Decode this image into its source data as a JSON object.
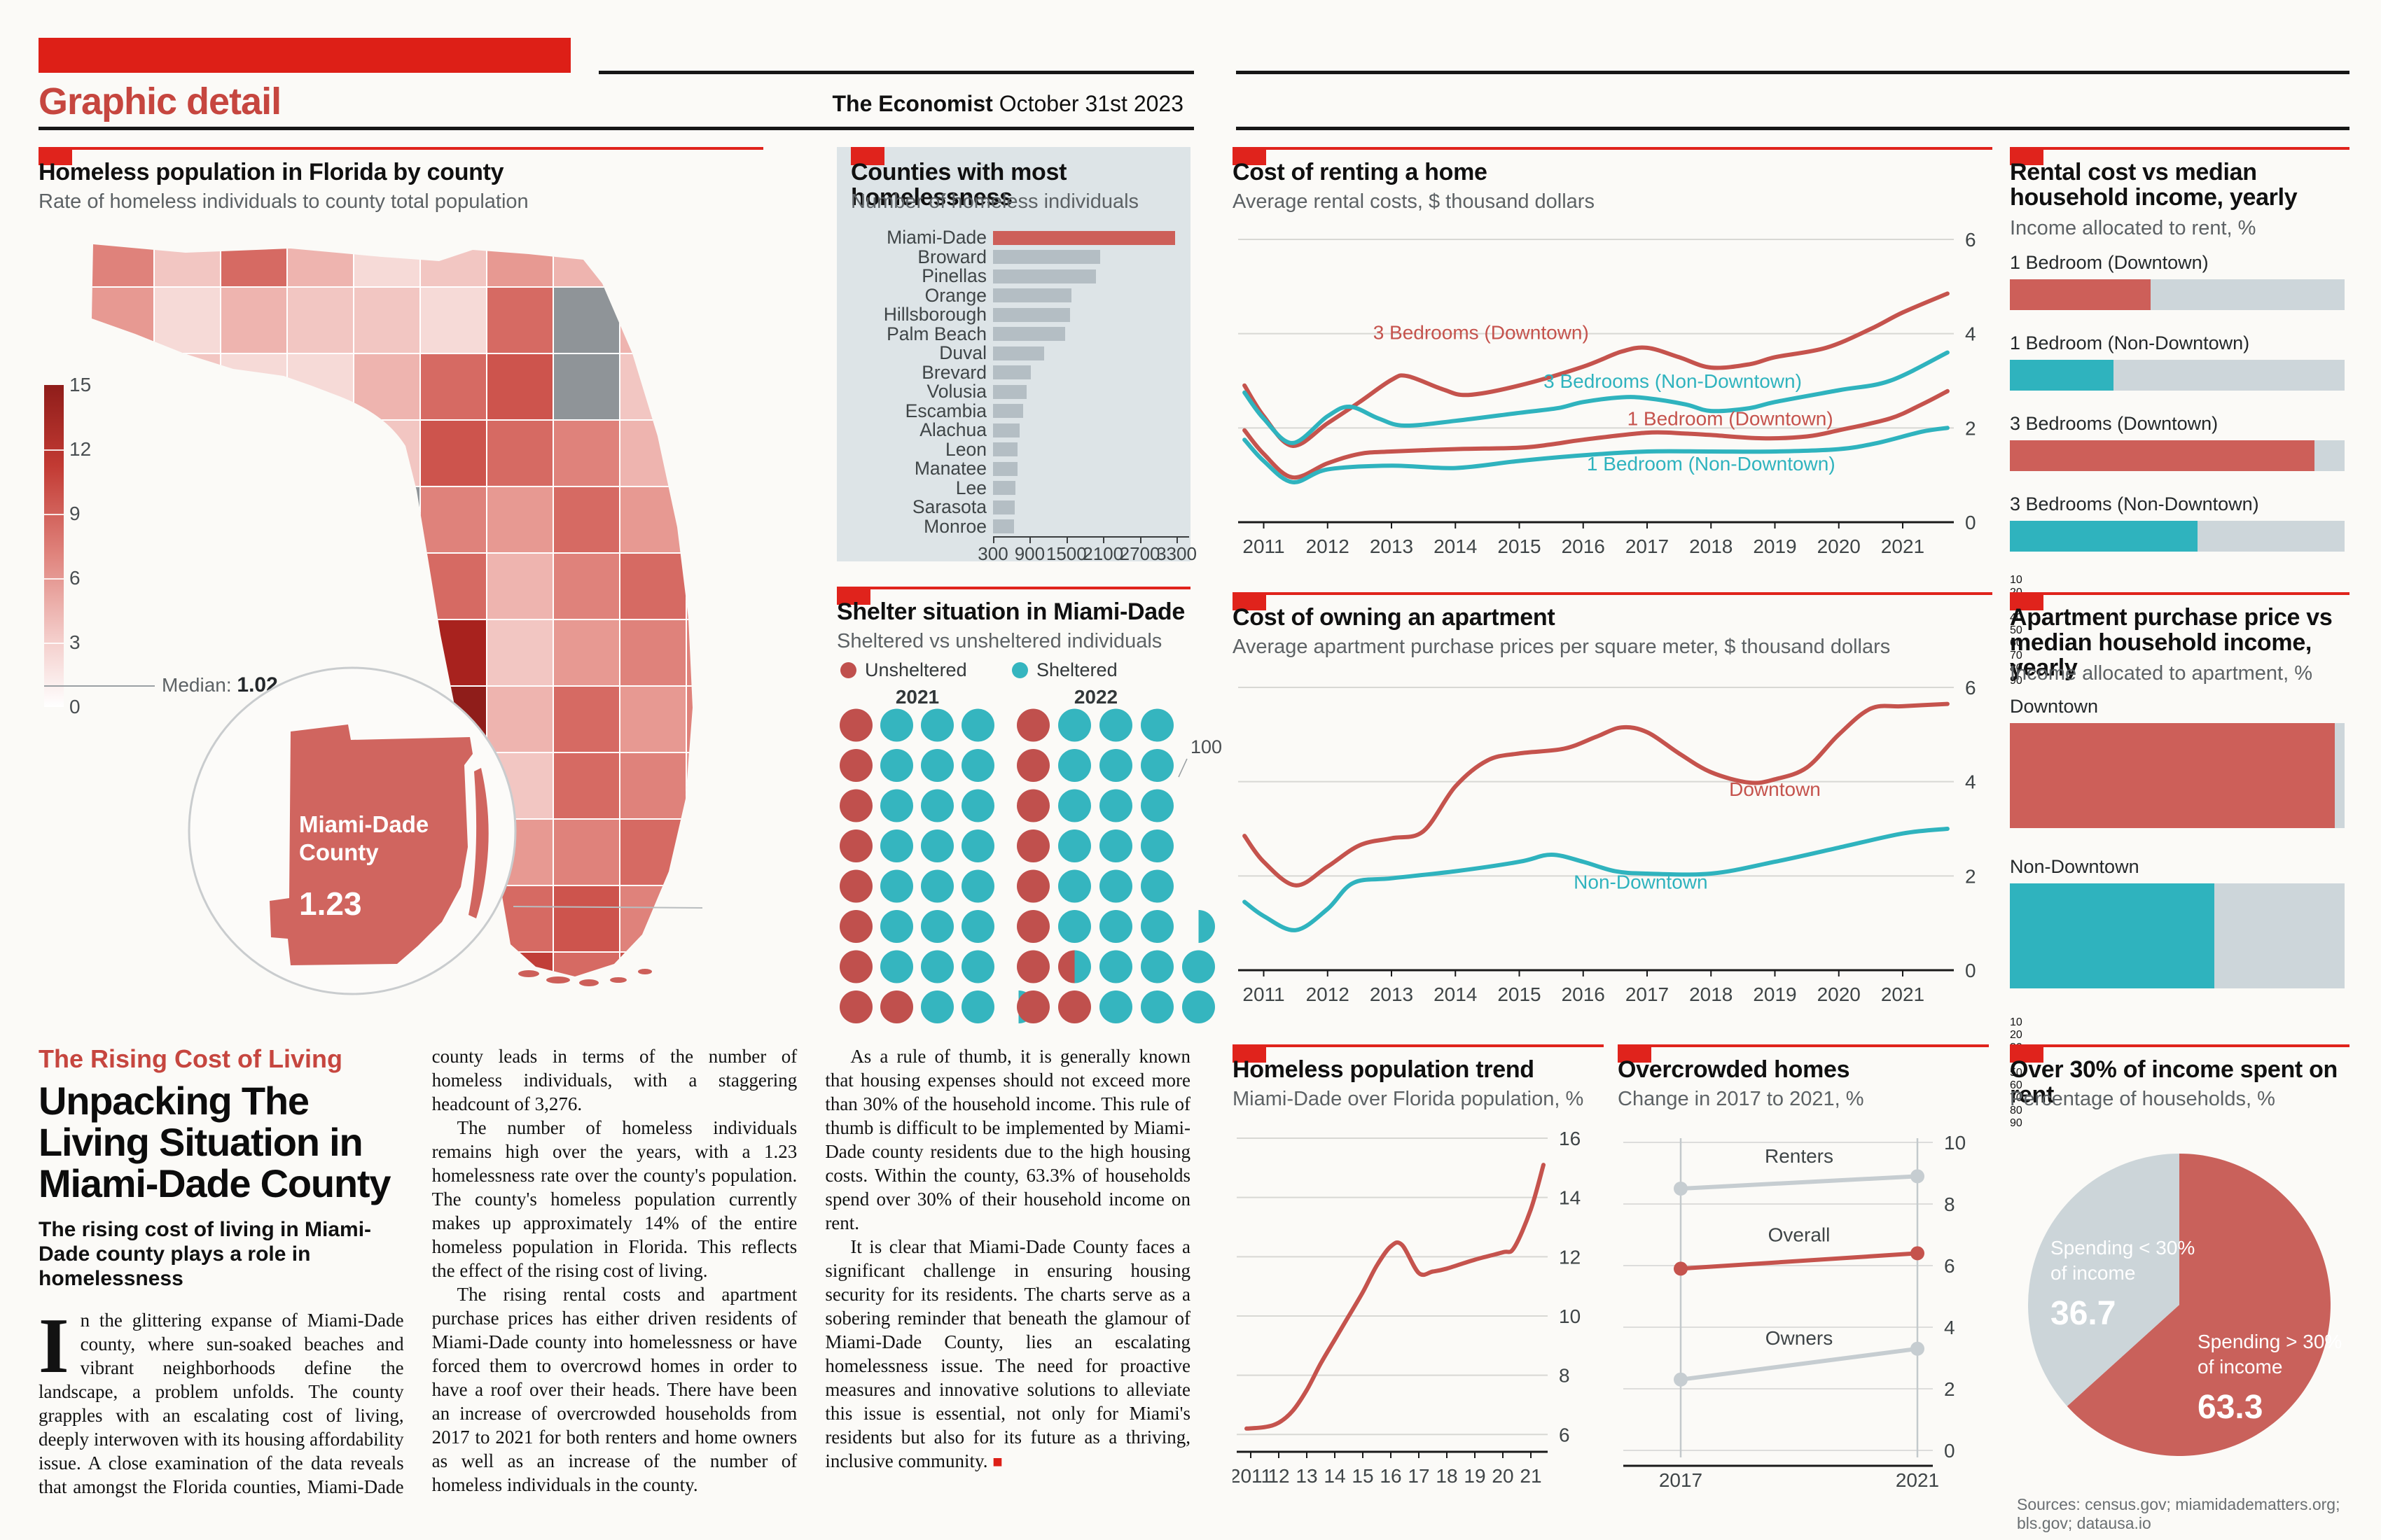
{
  "header": {
    "section": "Graphic detail",
    "publication": "The Economist",
    "date": "October 31st 2023"
  },
  "sources": "Sources: census.gov; miamidadematters.org; bls.gov; datausa.io",
  "article": {
    "kicker": "The Rising Cost of Living",
    "headline": "Unpacking The Living Situation in Miami-Dade County",
    "deck": "The rising cost of living in Miami-Dade county plays a role in homelessness",
    "paragraphs": [
      "In the glittering expanse of Miami-Dade county, where sun-soaked beaches and vibrant neighborhoods define the landscape, a problem unfolds. The county grapples with an escalating cost of living, deeply interwoven with its housing affordability issue. A close examination of the data reveals that amongst the Florida counties, Miami-Dade county leads in terms of the number of homeless individuals, with a staggering headcount of 3,276.",
      "The number of homeless individuals remains high over the years, with a 1.23 homelessness rate over the county's population. The county's homeless population currently makes up approximately 14% of the entire homeless population in Florida. This reflects the effect of the rising cost of living.",
      "The rising rental costs and apartment purchase prices has either driven residents of Miami-Dade county into homelessness or have forced them to overcrowd homes in order to have a roof over their heads. There have been an increase of overcrowded households from 2017 to 2021 for both renters and home owners as well as an increase of the number of homeless individuals in the county.",
      "As a rule of thumb, it is generally known that housing expenses should not exceed more than 30% of the household income. This rule of thumb is difficult to be implemented by Miami-Dade county residents due to the high housing costs. Within the county, 63.3% of households spend over 30% of their household income on rent.",
      "It is clear that Miami-Dade County faces a significant challenge in ensuring housing security for its residents. The charts serve as a sobering reminder that beneath the glamour of Miami-Dade County, lies an escalating homelessness issue. The need for proactive measures and innovative solutions to alleviate this issue is essential, not only for Miami's residents but also for its future as a thriving, inclusive community."
    ],
    "end_mark": "■"
  },
  "chart_data": [
    {
      "type": "bar",
      "orientation": "horizontal",
      "title": "Counties with most homelessness",
      "subtitle": "Number of homeless individuals",
      "categories": [
        "Miami-Dade",
        "Broward",
        "Pinellas",
        "Orange",
        "Hillsborough",
        "Palm Beach",
        "Duval",
        "Brevard",
        "Volusia",
        "Escambia",
        "Alachua",
        "Leon",
        "Manatee",
        "Lee",
        "Sarasota",
        "Monroe"
      ],
      "values": [
        3276,
        2046,
        1985,
        1580,
        1555,
        1480,
        1130,
        920,
        850,
        790,
        730,
        705,
        700,
        670,
        660,
        640
      ],
      "highlight_index": 0,
      "highlight_color": "#cd5f59",
      "bar_color": "#b4bec4",
      "xlim": [
        300,
        3300
      ],
      "x_ticks": [
        300,
        900,
        1500,
        2100,
        2700,
        3300
      ]
    },
    {
      "type": "line",
      "title": "Cost of renting a home",
      "subtitle": "Average rental costs, $ thousand dollars",
      "ylim": [
        0,
        6
      ],
      "y_ticks": [
        0,
        2,
        4,
        6
      ],
      "grid_vals": [
        2,
        4,
        6
      ],
      "x_ticks": [
        "2011",
        "2012",
        "2013",
        "2014",
        "2015",
        "2016",
        "2017",
        "2018",
        "2019",
        "2020",
        "2021"
      ],
      "series": [
        {
          "name": "3 Bedrooms (Downtown)",
          "color": "#c5534d",
          "label": [
            2014.4,
            3.88
          ],
          "x": [
            2010.7,
            2011,
            2011.45,
            2012,
            2012.5,
            2013,
            2013.25,
            2013.8,
            2014.2,
            2015,
            2016,
            2016.6,
            2017,
            2017.5,
            2018,
            2018.6,
            2019,
            2019.8,
            2020.5,
            2021,
            2021.7
          ],
          "y": [
            2.9,
            2.25,
            1.62,
            2.1,
            2.55,
            3.02,
            3.1,
            2.82,
            2.7,
            2.9,
            3.3,
            3.62,
            3.7,
            3.5,
            3.28,
            3.35,
            3.5,
            3.7,
            4.1,
            4.45,
            4.85
          ]
        },
        {
          "name": "3 Bedrooms (Non-Downtown)",
          "color": "#2fb3be",
          "label": [
            2017.4,
            2.85
          ],
          "x": [
            2010.7,
            2011,
            2011.45,
            2012,
            2012.35,
            2012.8,
            2013.2,
            2014,
            2015,
            2015.6,
            2016,
            2016.6,
            2017,
            2017.6,
            2018,
            2018.6,
            2019,
            2020,
            2020.8,
            2021.7
          ],
          "y": [
            2.75,
            2.2,
            1.68,
            2.25,
            2.45,
            2.2,
            2.05,
            2.15,
            2.32,
            2.42,
            2.55,
            2.65,
            2.63,
            2.5,
            2.36,
            2.42,
            2.55,
            2.8,
            3.0,
            3.6
          ]
        },
        {
          "name": "1 Bedroom (Downtown)",
          "color": "#c5534d",
          "label": [
            2018.3,
            2.06
          ],
          "x": [
            2010.7,
            2011,
            2011.45,
            2012,
            2012.5,
            2013,
            2014,
            2015,
            2015.5,
            2016,
            2017,
            2017.6,
            2018,
            2018.8,
            2019.5,
            2020,
            2020.8,
            2021.3,
            2021.7
          ],
          "y": [
            1.95,
            1.45,
            0.95,
            1.25,
            1.45,
            1.5,
            1.55,
            1.58,
            1.65,
            1.75,
            1.9,
            1.88,
            1.85,
            1.78,
            1.82,
            1.95,
            2.2,
            2.5,
            2.78
          ]
        },
        {
          "name": "1 Bedroom (Non-Downtown)",
          "color": "#2fb3be",
          "label": [
            2018.0,
            1.1
          ],
          "x": [
            2010.7,
            2011,
            2011.45,
            2012,
            2013,
            2014,
            2015,
            2016,
            2017,
            2018,
            2019,
            2020,
            2020.6,
            2021.3,
            2021.7
          ],
          "y": [
            1.75,
            1.3,
            0.85,
            1.12,
            1.2,
            1.15,
            1.3,
            1.42,
            1.5,
            1.5,
            1.5,
            1.55,
            1.68,
            1.92,
            2.0
          ]
        }
      ]
    },
    {
      "type": "bar",
      "orientation": "horizontal",
      "title": "Rental cost vs median household income, yearly",
      "subtitle": "Income allocated to rent, %",
      "categories": [
        "1 Bedroom (Downtown)",
        "1 Bedroom (Non-Downtown)",
        "3 Bedrooms (Downtown)",
        "3 Bedrooms (Non-Downtown)"
      ],
      "values": [
        42,
        31,
        91,
        56
      ],
      "colors": [
        "#cd5f59",
        "#2fb3be",
        "#cd5f59",
        "#2fb3be"
      ],
      "xlim": [
        0,
        100
      ],
      "x_ticks": [
        10,
        20,
        30,
        40,
        50,
        60,
        70,
        80,
        90
      ],
      "track_color": "#cdd6da"
    },
    {
      "type": "line",
      "title": "Cost of owning an apartment",
      "subtitle": "Average apartment purchase prices per square meter, $ thousand dollars",
      "ylim": [
        0,
        6
      ],
      "y_ticks": [
        0,
        2,
        4,
        6
      ],
      "grid_vals": [
        2,
        4,
        6
      ],
      "x_ticks": [
        "2011",
        "2012",
        "2013",
        "2014",
        "2015",
        "2016",
        "2017",
        "2018",
        "2019",
        "2020",
        "2021"
      ],
      "series": [
        {
          "name": "Downtown",
          "color": "#c5534d",
          "label": [
            2019.0,
            3.7
          ],
          "x": [
            2010.7,
            2011,
            2011.5,
            2012,
            2012.5,
            2013,
            2013.5,
            2014,
            2014.5,
            2015,
            2015.7,
            2016.2,
            2016.6,
            2017,
            2017.5,
            2018,
            2018.6,
            2019,
            2019.5,
            2020,
            2020.5,
            2021,
            2021.7
          ],
          "y": [
            2.85,
            2.3,
            1.8,
            2.2,
            2.65,
            2.8,
            2.95,
            3.9,
            4.45,
            4.6,
            4.7,
            4.95,
            5.15,
            5.05,
            4.6,
            4.2,
            3.98,
            4.05,
            4.3,
            5.0,
            5.55,
            5.6,
            5.65
          ]
        },
        {
          "name": "Non-Downtown",
          "color": "#2fb3be",
          "label": [
            2016.9,
            1.73
          ],
          "x": [
            2010.7,
            2011,
            2011.5,
            2012,
            2012.4,
            2013,
            2014,
            2015,
            2015.5,
            2016,
            2016.5,
            2017,
            2018,
            2019,
            2020,
            2021,
            2021.7
          ],
          "y": [
            1.45,
            1.15,
            0.85,
            1.3,
            1.85,
            1.95,
            2.1,
            2.3,
            2.45,
            2.3,
            2.1,
            2.05,
            2.05,
            2.3,
            2.6,
            2.9,
            3.0
          ]
        }
      ]
    },
    {
      "type": "bar",
      "orientation": "horizontal",
      "title": "Apartment purchase price vs median household income, yearly",
      "subtitle": "Income allocated to apartment, %",
      "categories": [
        "Downtown",
        "Non-Downtown"
      ],
      "values": [
        97,
        61
      ],
      "colors": [
        "#cd5f59",
        "#2fb3be"
      ],
      "xlim": [
        0,
        100
      ],
      "x_ticks": [
        10,
        20,
        30,
        40,
        50,
        60,
        70,
        80,
        90
      ],
      "track_color": "#cdd6da"
    },
    {
      "type": "line",
      "title": "Homeless population trend",
      "subtitle": "Miami-Dade over Florida population, %",
      "ylim": [
        5.7,
        16
      ],
      "y_ticks": [
        16,
        14,
        12,
        10,
        8,
        6
      ],
      "grid_vals": [
        6,
        8,
        10,
        12,
        14,
        16
      ],
      "x_ticks": [
        "2011",
        "12",
        "13",
        "14",
        "15",
        "16",
        "17",
        "18",
        "19",
        "20",
        "21"
      ],
      "series": [
        {
          "name": "Miami-Dade over Florida",
          "color": "#c5534d",
          "x": [
            2010.85,
            2011.5,
            2012,
            2012.5,
            2013,
            2013.5,
            2014,
            2014.5,
            2015,
            2015.5,
            2016,
            2016.4,
            2017,
            2017.5,
            2018,
            2019,
            2020,
            2020.4,
            2021,
            2021.45
          ],
          "y": [
            6.2,
            6.25,
            6.4,
            6.8,
            7.5,
            8.4,
            9.2,
            10.0,
            10.8,
            11.7,
            12.35,
            12.4,
            11.45,
            11.5,
            11.6,
            11.9,
            12.15,
            12.3,
            13.6,
            15.1
          ]
        }
      ]
    },
    {
      "type": "slope",
      "title": "Overcrowded homes",
      "subtitle": "Change in 2017 to 2021, %",
      "categories": [
        "2017",
        "2021"
      ],
      "ylim": [
        0,
        10
      ],
      "y_ticks": [
        10,
        8,
        6,
        4,
        2,
        0
      ],
      "series": [
        {
          "name": "Renters",
          "color": "#c6cdd1",
          "values": [
            8.5,
            8.9
          ]
        },
        {
          "name": "Overall",
          "color": "#c5534d",
          "values": [
            5.9,
            6.4
          ]
        },
        {
          "name": "Owners",
          "color": "#c6cdd1",
          "values": [
            2.3,
            3.3
          ]
        }
      ]
    },
    {
      "type": "pie",
      "title": "Over 30% of income spent on rent",
      "subtitle": "Percentage of households, %",
      "slices": [
        {
          "label_line1": "Spending > 30%",
          "label_line2": "of income",
          "value": 63.3,
          "color": "#c9615b"
        },
        {
          "label_line1": "Spending < 30%",
          "label_line2": "of income",
          "value": 36.7,
          "color": "#ccd5d9"
        }
      ],
      "start": "top",
      "direction": "clockwise"
    },
    {
      "type": "pictogram",
      "title": "Shelter situation in Miami-Dade",
      "subtitle": "Sheltered vs unsheltered individuals",
      "unit_value": "100",
      "legend": [
        {
          "label": "Unsheltered",
          "color": "#c0504d"
        },
        {
          "label": "Sheltered",
          "color": "#35b5bf"
        }
      ],
      "years": [
        "2021",
        "2022"
      ],
      "grid_2021": [
        [
          "u",
          "s",
          "s",
          "s"
        ],
        [
          "u",
          "s",
          "s",
          "s"
        ],
        [
          "u",
          "s",
          "s",
          "s"
        ],
        [
          "u",
          "s",
          "s",
          "s"
        ],
        [
          "u",
          "s",
          "s",
          "s"
        ],
        [
          "u",
          "s",
          "s",
          "s"
        ],
        [
          "u",
          "s",
          "s",
          "s"
        ],
        [
          "u",
          "u",
          "s",
          "s",
          "hs"
        ]
      ],
      "grid_2022": [
        [
          "u",
          "s",
          "s",
          "s"
        ],
        [
          "u",
          "s",
          "s",
          "s"
        ],
        [
          "u",
          "s",
          "s",
          "s"
        ],
        [
          "u",
          "s",
          "s",
          "s"
        ],
        [
          "u",
          "s",
          "s",
          "s"
        ],
        [
          "u",
          "s",
          "s",
          "s",
          "hs"
        ],
        [
          "u",
          "us",
          "s",
          "s",
          "s"
        ],
        [
          "u",
          "u",
          "s",
          "s",
          "s"
        ]
      ]
    },
    {
      "type": "choropleth",
      "title": "Homeless population in Florida by county",
      "subtitle": "Rate of homeless individuals to county total population",
      "legend_ticks": [
        15,
        12,
        9,
        6,
        3,
        0
      ],
      "legend_max": 15,
      "median_label": "Median:",
      "median_value": 1.02,
      "callout": {
        "line1": "Miami-Dade",
        "line2": "County",
        "value": "1.23"
      },
      "no_data_color": "#8f9498",
      "cells": [
        "#df827b",
        "#f2c6c2",
        "#d66a63",
        "#eeb4af",
        "#f6dad7",
        "#f2c6c2",
        "#e79992",
        "#eeb4af",
        "#f2c6c2",
        "#eeb4af",
        "#e79992",
        "#f6dad7",
        "#eeb4af",
        "#f2c6c2",
        "#f2c6c2",
        "#f6dad7",
        "#d66a63",
        "#8f9498",
        "#eeb4af",
        "#e79992",
        "#eeb4af",
        "#f2c6c2",
        "#f6dad7",
        "#f6dad7",
        "#eeb4af",
        "#d66a63",
        "#cd544d",
        "#8f9498",
        "#f2c6c2",
        "#df827b",
        "#f2c6c2",
        "#eeb4af",
        "#f2c6c2",
        "#f6dad7",
        "#f2c6c2",
        "#cd544d",
        "#d66a63",
        "#df827b",
        "#eeb4af",
        "#e79992",
        "#f6dad7",
        "#f2c6c2",
        "#eeb4af",
        "#f2c6c2",
        "#8f9498",
        "#df827b",
        "#e79992",
        "#d66a63",
        "#e79992",
        "#df827b",
        "#f2c6c2",
        "#eeb4af",
        "#f2c6c2",
        "#eeb4af",
        "#f2c6c2",
        "#d66a63",
        "#eeb4af",
        "#df827b",
        "#d66a63",
        "#e79992",
        "#eeb4af",
        "#f2c6c2",
        "#e79992",
        "#eeb4af",
        "#c13e38",
        "#a8221e",
        "#f2c6c2",
        "#e79992",
        "#df827b",
        "#df827b",
        "#f2c6c2",
        "#eeb4af",
        "#eeb4af",
        "#e79992",
        "#d66a63",
        "#8f1d1a",
        "#eeb4af",
        "#d66a63",
        "#e79992",
        "#df827b",
        "#eeb4af",
        "#f2c6c2",
        "#e79992",
        "#df827b",
        "#e79992",
        "#df827b",
        "#f2c6c2",
        "#d66a63",
        "#df827b",
        "#e79992",
        "#f2c6c2",
        "#eeb4af",
        "#df827b",
        "#e79992",
        "#df827b",
        "#d66a63",
        "#e79992",
        "#df827b",
        "#d66a63",
        "#df827b",
        "#eeb4af",
        "#e79992",
        "#df827b",
        "#d66a63",
        "#df827b",
        "#e79992",
        "#d66a63",
        "#cd544d",
        "#df827b",
        "#d66a63",
        "#e79992",
        "#df827b",
        "#d66a63",
        "#df827b",
        "#d66a63",
        "#cd544d",
        "#c13e38",
        "#d66a63",
        "#cd544d",
        "#df827b"
      ]
    }
  ]
}
